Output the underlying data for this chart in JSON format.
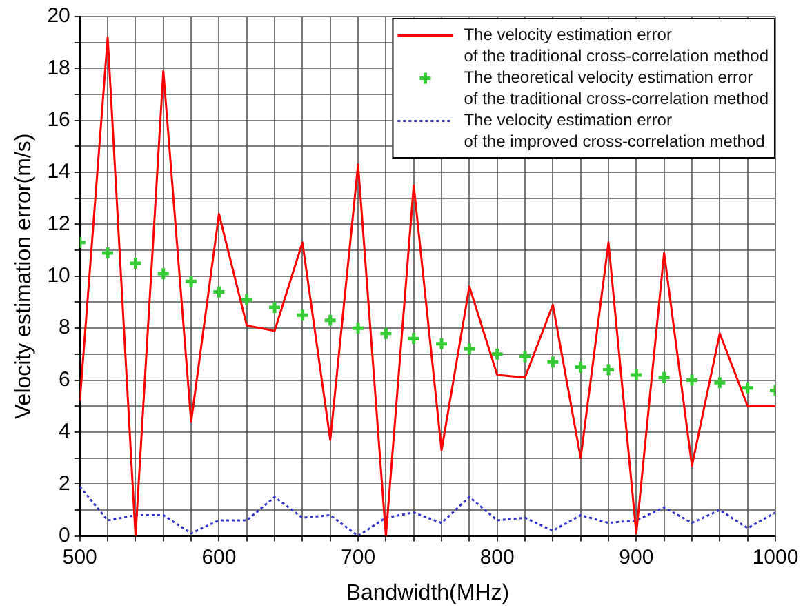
{
  "chart_data": {
    "type": "line",
    "xlabel": "Bandwidth(MHz)",
    "ylabel": "Velocity estimation error(m/s)",
    "x": [
      500,
      520,
      540,
      560,
      580,
      600,
      620,
      640,
      660,
      680,
      700,
      720,
      740,
      760,
      780,
      800,
      820,
      840,
      860,
      880,
      900,
      920,
      940,
      960,
      980,
      1000
    ],
    "series": [
      {
        "name": "The velocity estimation error\nof the traditional cross-correlation method",
        "color": "#ff0000",
        "marker": "none",
        "line_style": "solid",
        "values": [
          5.2,
          19.2,
          0,
          17.9,
          4.4,
          12.4,
          8.1,
          7.9,
          11.3,
          3.7,
          14.3,
          0,
          13.5,
          3.3,
          9.6,
          6.2,
          6.1,
          8.9,
          3.0,
          11.3,
          0.1,
          10.9,
          2.7,
          7.8,
          5.0,
          5.0
        ]
      },
      {
        "name": "The theoretical velocity estimation error\nof the traditional cross-correlation method",
        "color": "#33cc33",
        "type": "scatter",
        "marker": "cross",
        "values": [
          11.3,
          10.9,
          10.5,
          10.1,
          9.8,
          9.4,
          9.1,
          8.8,
          8.5,
          8.3,
          8.0,
          7.8,
          7.6,
          7.4,
          7.2,
          7.0,
          6.9,
          6.7,
          6.5,
          6.4,
          6.2,
          6.1,
          6.0,
          5.9,
          5.7,
          5.6
        ]
      },
      {
        "name": "The velocity estimation error\nof the improved cross-correlation method",
        "color": "#3333cc",
        "marker": "none",
        "line_style": "dotted",
        "values": [
          1.9,
          0.6,
          0.8,
          0.8,
          0.1,
          0.6,
          0.6,
          1.5,
          0.7,
          0.8,
          0.0,
          0.7,
          0.9,
          0.5,
          1.5,
          0.6,
          0.7,
          0.2,
          0.8,
          0.5,
          0.6,
          1.1,
          0.5,
          1.0,
          0.3,
          0.9
        ]
      }
    ],
    "xlim": [
      500,
      1000
    ],
    "xticks": [
      500,
      {
        "value": 520,
        "label": null
      },
      {
        "value": 540,
        "label": null
      },
      {
        "value": 560,
        "label": null
      },
      {
        "value": 580,
        "label": null
      },
      600,
      {
        "value": 620,
        "label": null
      },
      {
        "value": 640,
        "label": null
      },
      {
        "value": 660,
        "label": null
      },
      {
        "value": 680,
        "label": null
      },
      700,
      {
        "value": 720,
        "label": null
      },
      {
        "value": 740,
        "label": null
      },
      {
        "value": 760,
        "label": null
      },
      {
        "value": 780,
        "label": null
      },
      800,
      {
        "value": 820,
        "label": null
      },
      {
        "value": 840,
        "label": null
      },
      {
        "value": 860,
        "label": null
      },
      {
        "value": 880,
        "label": null
      },
      900,
      {
        "value": 920,
        "label": null
      },
      {
        "value": 940,
        "label": null
      },
      {
        "value": 960,
        "label": null
      },
      {
        "value": 980,
        "label": null
      },
      1000
    ],
    "ylim": [
      0,
      20
    ],
    "yticks": [
      0,
      {
        "value": 1,
        "label": null
      },
      2,
      {
        "value": 3,
        "label": null
      },
      4,
      {
        "value": 5,
        "label": null
      },
      6,
      {
        "value": 7,
        "label": null
      },
      8,
      {
        "value": 9,
        "label": null
      },
      10,
      {
        "value": 11,
        "label": null
      },
      12,
      {
        "value": 13,
        "label": null
      },
      14,
      {
        "value": 15,
        "label": null
      },
      16,
      {
        "value": 17,
        "label": null
      },
      18,
      {
        "value": 19,
        "label": null
      },
      20
    ],
    "grid": true,
    "legend": "top right"
  }
}
